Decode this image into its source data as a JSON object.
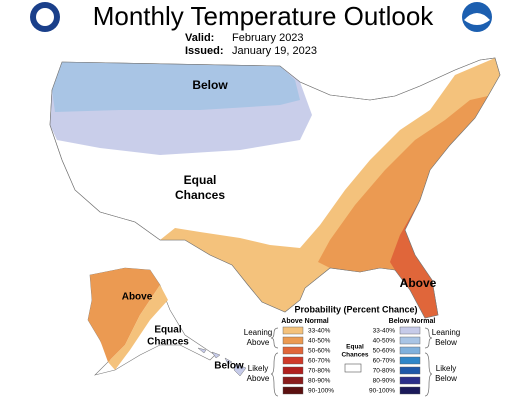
{
  "header": {
    "title": "Monthly Temperature Outlook",
    "valid_label": "Valid:",
    "valid": "February 2023",
    "issued_label": "Issued:",
    "issued": "January 19, 2023"
  },
  "map_labels": {
    "north_below": "Below",
    "west_equal": [
      "Equal",
      "Chances"
    ],
    "southeast_above": "Above",
    "alaska_above": "Above",
    "alaska_equal": [
      "Equal",
      "Chances"
    ],
    "hawaii_below": "Below"
  },
  "legend": {
    "title": "Probability (Percent Chance)",
    "above_header": "Above Normal",
    "below_header": "Below Normal",
    "above_bins": [
      {
        "label": "33-40%",
        "color": "#f4c27c"
      },
      {
        "label": "40-50%",
        "color": "#eb9a52"
      },
      {
        "label": "50-60%",
        "color": "#e0663a"
      },
      {
        "label": "60-70%",
        "color": "#cf3a2a"
      },
      {
        "label": "70-80%",
        "color": "#b0201e"
      },
      {
        "label": "80-90%",
        "color": "#8a1c1c"
      },
      {
        "label": "90-100%",
        "color": "#5c1010"
      }
    ],
    "below_bins": [
      {
        "label": "33-40%",
        "color": "#c6cbe9"
      },
      {
        "label": "40-50%",
        "color": "#a9c5e5"
      },
      {
        "label": "50-60%",
        "color": "#80b1dc"
      },
      {
        "label": "60-70%",
        "color": "#2f86c8"
      },
      {
        "label": "70-80%",
        "color": "#1f58a8"
      },
      {
        "label": "80-90%",
        "color": "#2b2f8a"
      },
      {
        "label": "90-100%",
        "color": "#1b1a5a"
      }
    ],
    "equal_label": [
      "Equal",
      "Chances"
    ],
    "leaning_above": [
      "Leaning",
      "Above"
    ],
    "likely_above": [
      "Likely",
      "Above"
    ],
    "leaning_below": [
      "Leaning",
      "Below"
    ],
    "likely_below": [
      "Likely",
      "Below"
    ]
  }
}
